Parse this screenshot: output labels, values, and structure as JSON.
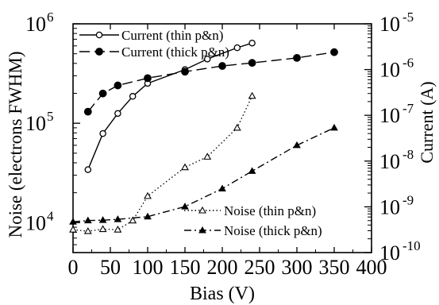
{
  "chart_data": {
    "type": "line",
    "xlabel": "Bias (V)",
    "ylabel": "Noise (electrons FWHM)",
    "y2label": "Current (A)",
    "xlim": [
      0,
      400
    ],
    "ylim": [
      5000,
      1000000
    ],
    "y2lim": [
      1e-10,
      1e-05
    ],
    "yscale": "log",
    "y2scale": "log",
    "x_ticks": [
      "0",
      "50",
      "100",
      "150",
      "200",
      "250",
      "300",
      "350",
      "400"
    ],
    "y_ticks": [
      {
        "base": "10",
        "exp": "4"
      },
      {
        "base": "10",
        "exp": "5"
      },
      {
        "base": "10",
        "exp": "6"
      }
    ],
    "y2_ticks": [
      {
        "base": "10",
        "exp": "-10"
      },
      {
        "base": "10",
        "exp": "-9"
      },
      {
        "base": "10",
        "exp": "-8"
      },
      {
        "base": "10",
        "exp": "-7"
      },
      {
        "base": "10",
        "exp": "-6"
      },
      {
        "base": "10",
        "exp": "-5"
      }
    ],
    "legend_placement": [
      "top-left",
      "bottom-right"
    ],
    "series": [
      {
        "name": "Current (thin p&n)",
        "axis": "right",
        "marker": "open-circle",
        "line": "solid",
        "x": [
          20,
          40,
          60,
          80,
          100,
          150,
          180,
          220,
          240
        ],
        "y": [
          6.5e-09,
          4e-08,
          1.1e-07,
          2.6e-07,
          5e-07,
          1e-06,
          1.7e-06,
          3e-06,
          3.8e-06
        ]
      },
      {
        "name": "Current (thick p&n)",
        "axis": "right",
        "marker": "filled-circle",
        "line": "long-dash",
        "x": [
          20,
          40,
          60,
          100,
          150,
          200,
          240,
          300,
          350
        ],
        "y": [
          1.2e-07,
          3e-07,
          4.5e-07,
          6.5e-07,
          9e-07,
          1.2e-06,
          1.4e-06,
          1.8e-06,
          2.4e-06
        ]
      },
      {
        "name": "Noise (thin p&n)",
        "axis": "left",
        "marker": "open-triangle",
        "line": "dotted",
        "x": [
          0,
          20,
          40,
          60,
          80,
          100,
          150,
          180,
          220,
          240
        ],
        "y": [
          8500,
          8200,
          8600,
          8500,
          10500,
          18500,
          36000,
          46000,
          90000,
          188000
        ]
      },
      {
        "name": "Noise (thick p&n)",
        "axis": "left",
        "marker": "filled-triangle",
        "line": "dash-dot",
        "x": [
          0,
          20,
          40,
          60,
          100,
          150,
          200,
          240,
          300,
          350
        ],
        "y": [
          10200,
          10500,
          10600,
          10800,
          11500,
          14500,
          22000,
          33000,
          60000,
          90000
        ]
      }
    ]
  }
}
